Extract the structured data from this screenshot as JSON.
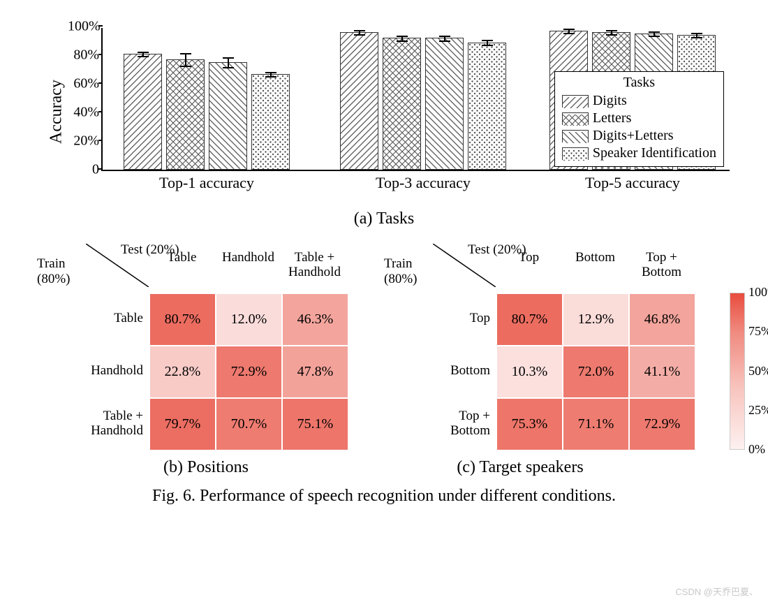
{
  "barChart": {
    "type": "bar",
    "ylabel": "Accuracy",
    "ylim": [
      0,
      100
    ],
    "yticks": [
      0,
      20,
      40,
      60,
      80,
      100
    ],
    "ytick_labels": [
      "0",
      "20%",
      "40%",
      "60%",
      "80%",
      "100%"
    ],
    "label_fontsize": 24,
    "tick_fontsize": 20,
    "bar_border": "#333333",
    "bar_fill": "#ffffff",
    "background_color": "#ffffff",
    "groups": [
      {
        "label": "Top-1 accuracy",
        "bars": [
          {
            "value": 81,
            "err": 2
          },
          {
            "value": 77,
            "err": 5
          },
          {
            "value": 75,
            "err": 4
          },
          {
            "value": 67,
            "err": 2
          }
        ]
      },
      {
        "label": "Top-3 accuracy",
        "bars": [
          {
            "value": 96,
            "err": 2
          },
          {
            "value": 92,
            "err": 2
          },
          {
            "value": 92,
            "err": 2
          },
          {
            "value": 89,
            "err": 2
          }
        ]
      },
      {
        "label": "Top-5 accuracy",
        "bars": [
          {
            "value": 97,
            "err": 2
          },
          {
            "value": 96,
            "err": 2
          },
          {
            "value": 95,
            "err": 2
          },
          {
            "value": 94,
            "err": 2
          }
        ]
      }
    ],
    "legend": {
      "title": "Tasks",
      "items": [
        "Digits",
        "Letters",
        "Digits+Letters",
        "Speaker Identification"
      ]
    },
    "patterns": [
      "diag-fw",
      "cross",
      "diag-bw",
      "dots"
    ],
    "subcaption": "(a) Tasks"
  },
  "heatmapB": {
    "type": "heatmap",
    "test_label": "Test (20%)",
    "train_label_l1": "Train",
    "train_label_l2": "(80%)",
    "cols": [
      "Table",
      "Handhold",
      "Table +\nHandhold"
    ],
    "rows": [
      "Table",
      "Handhold",
      "Table +\nHandhold"
    ],
    "values": [
      [
        80.7,
        12.0,
        46.3
      ],
      [
        22.8,
        72.9,
        47.8
      ],
      [
        79.7,
        70.7,
        75.1
      ]
    ],
    "subcaption": "(b) Positions",
    "cell_fontsize": 20,
    "label_fontsize": 19
  },
  "heatmapC": {
    "type": "heatmap",
    "test_label": "Test (20%)",
    "train_label_l1": "Train",
    "train_label_l2": "(80%)",
    "cols": [
      "Top",
      "Bottom",
      "Top +\nBottom"
    ],
    "rows": [
      "Top",
      "Bottom",
      "Top +\nBottom"
    ],
    "values": [
      [
        80.7,
        12.9,
        46.8
      ],
      [
        10.3,
        72.0,
        41.1
      ],
      [
        75.3,
        71.1,
        72.9
      ]
    ],
    "subcaption": "(c) Target speakers",
    "cell_fontsize": 20,
    "label_fontsize": 19
  },
  "colorScale": {
    "min": 0,
    "max": 100,
    "color_low": "#fdf1f0",
    "color_high": "#e84c3d",
    "ticks": [
      0,
      25,
      50,
      75,
      100
    ],
    "tick_labels": [
      "0%",
      "25%",
      "50%",
      "75%",
      "100%"
    ]
  },
  "caption": "Fig. 6.  Performance of speech recognition under different conditions.",
  "watermark": "CSDN @天乔巴夏、"
}
